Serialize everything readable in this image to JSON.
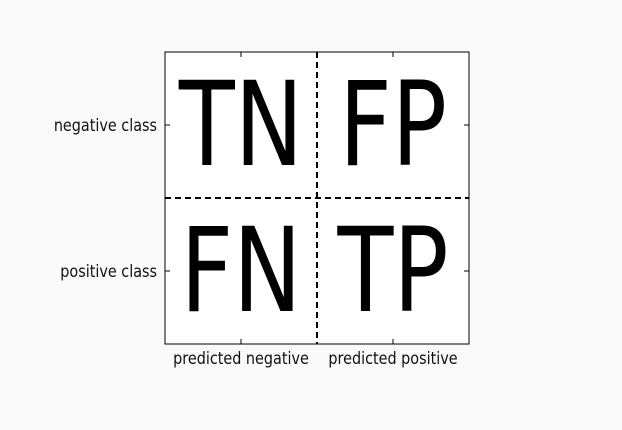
{
  "matrix": {
    "cells": {
      "tn": "TN",
      "fp": "FP",
      "fn": "FN",
      "tp": "TP"
    },
    "row_labels": {
      "negative": "negative class",
      "positive": "positive class"
    },
    "column_labels": {
      "negative": "predicted negative",
      "positive": "predicted positive"
    }
  }
}
